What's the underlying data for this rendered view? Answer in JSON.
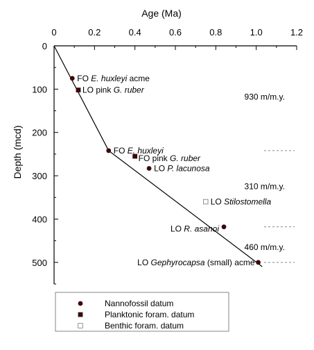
{
  "chart_data": {
    "type": "scatter",
    "x_axis": {
      "label": "Age (Ma)",
      "position": "top",
      "range": [
        0,
        1.2
      ],
      "ticks": [
        "0",
        "0.2",
        "0.4",
        "0.6",
        "0.8",
        "1.0",
        "1.2"
      ],
      "tick_values": [
        0,
        0.2,
        0.4,
        0.6,
        0.8,
        1.0,
        1.2
      ]
    },
    "y_axis": {
      "label": "Depth (mcd)",
      "range": [
        0,
        550
      ],
      "inverted": true,
      "ticks": [
        "0",
        "100",
        "200",
        "300",
        "400",
        "500"
      ],
      "tick_values": [
        0,
        100,
        200,
        300,
        400,
        500
      ]
    },
    "series": [
      {
        "name": "Nannofossil datum",
        "marker": "filled-circle",
        "points": [
          {
            "x": 0.09,
            "y": 75,
            "label_prefix": "FO ",
            "label_italic": "E.  huxleyi",
            "label_suffix": " acme"
          },
          {
            "x": 0.27,
            "y": 242,
            "label_prefix": "FO ",
            "label_italic": "E.  huxleyi",
            "label_suffix": ""
          },
          {
            "x": 0.47,
            "y": 283,
            "label_prefix": "LO ",
            "label_italic": "P.  lacunosa",
            "label_suffix": ""
          },
          {
            "x": 0.84,
            "y": 418,
            "label_prefix": "LO ",
            "label_italic": "R.  asanoi",
            "label_suffix": ""
          },
          {
            "x": 1.01,
            "y": 500,
            "label_prefix": "LO ",
            "label_italic": "Gephyrocapsa",
            "label_suffix": " (small) acme"
          }
        ]
      },
      {
        "name": "Planktonic foram. datum",
        "marker": "filled-square",
        "points": [
          {
            "x": 0.12,
            "y": 102,
            "label_prefix": "LO pink ",
            "label_italic": "G. ruber",
            "label_suffix": ""
          },
          {
            "x": 0.4,
            "y": 255,
            "label_prefix": "FO pink ",
            "label_italic": "G. ruber",
            "label_suffix": ""
          }
        ]
      },
      {
        "name": "Benthic foram. datum",
        "marker": "open-square",
        "points": [
          {
            "x": 0.75,
            "y": 360,
            "label_prefix": "LO ",
            "label_italic": "Stilostomella",
            "label_suffix": ""
          }
        ]
      }
    ],
    "age_depth_line": [
      {
        "x": 0.0,
        "y": 0
      },
      {
        "x": 0.27,
        "y": 242
      },
      {
        "x": 1.03,
        "y": 510
      }
    ],
    "sedimentation_rates": [
      {
        "text": "930 m/m.y.",
        "y": 118
      },
      {
        "text": "310 m/m.y.",
        "y": 325
      },
      {
        "text": "460 m/m.y.",
        "y": 465
      }
    ],
    "boundary_depths": [
      242,
      418,
      500
    ],
    "legend": {
      "placement": "bottom",
      "entries": [
        {
          "label": "Nannofossil datum",
          "marker": "filled-circle"
        },
        {
          "label": "Planktonic foram. datum",
          "marker": "filled-square"
        },
        {
          "label": "Benthic foram. datum",
          "marker": "open-square"
        }
      ]
    },
    "grid": false,
    "colors": {
      "ink": "#000000",
      "marker": "#3a0a0a",
      "dashed": "#888888"
    }
  }
}
